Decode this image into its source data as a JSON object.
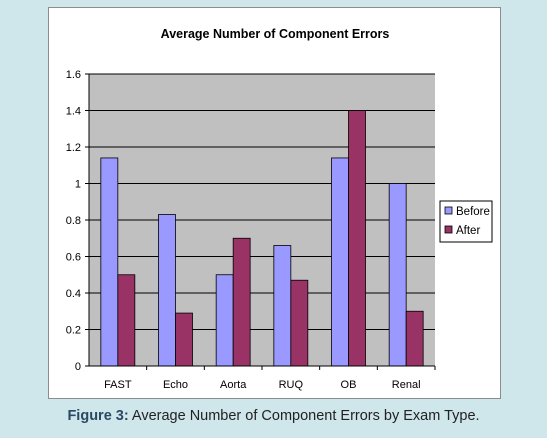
{
  "caption": {
    "label": "Figure 3:",
    "text": " Average Number of Component Errors by Exam Type."
  },
  "chart_data": {
    "type": "bar",
    "title": "Average Number of Component Errors",
    "xlabel": "",
    "ylabel": "",
    "categories": [
      "FAST",
      "Echo",
      "Aorta",
      "RUQ",
      "OB",
      "Renal"
    ],
    "series": [
      {
        "name": "Before",
        "color": "#9999ff",
        "values": [
          1.14,
          0.83,
          0.5,
          0.66,
          1.14,
          1.0
        ]
      },
      {
        "name": "After",
        "color": "#993366",
        "values": [
          0.5,
          0.29,
          0.7,
          0.47,
          1.4,
          0.3
        ]
      }
    ],
    "ylim": [
      0,
      1.6
    ],
    "yticks": [
      "0",
      "0.2",
      "0.4",
      "0.6",
      "0.8",
      "1",
      "1.2",
      "1.4",
      "1.6"
    ],
    "grid": true,
    "plot_background": "#c0c0c0",
    "legend_position": "right"
  }
}
